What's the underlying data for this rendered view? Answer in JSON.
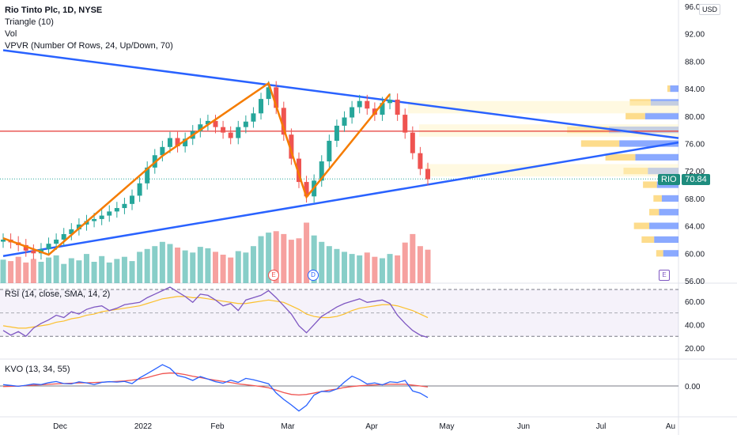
{
  "legend": {
    "title": "Rio Tinto Plc, 1D, NYSE",
    "triangle": "Triangle (10)",
    "vol": "Vol",
    "vpvr": "VPVR (Number Of Rows, 24, Up/Down, 70)"
  },
  "currency": "USD",
  "ticker": {
    "symbol": "RIO",
    "last_price": "70.84"
  },
  "rsi": {
    "label": "RSI (14, close, SMA, 14, 2)"
  },
  "kvo": {
    "label": "KVO (13, 34, 55)"
  },
  "markers": {
    "earnings": "E",
    "dividend": "D",
    "future_earnings": "E"
  },
  "colors": {
    "up": "#26a69a",
    "down": "#ef5350",
    "triangle_lines": "#2962ff",
    "pattern": "#f57c00",
    "horizontal_level": "#e53935",
    "rsi_line": "#7e57c2",
    "rsi_ma": "#fbc02d",
    "kvo_line": "#2962ff",
    "kvo_signal": "#ef5350"
  },
  "chart_data": {
    "type": "candlestick",
    "price_axis": {
      "ylim": [
        56,
        96
      ],
      "ticks": [
        "96.00",
        "92.00",
        "88.00",
        "84.00",
        "80.00",
        "76.00",
        "72.00",
        "68.00",
        "64.00",
        "60.00",
        "56.00"
      ]
    },
    "x_ticks": [
      "Dec",
      "2022",
      "Feb",
      "Mar",
      "Apr",
      "May",
      "Jun",
      "Jul",
      "Au"
    ],
    "horizontal_level": 77.8,
    "last_price": 70.84,
    "close_path": [
      62.0,
      61.6,
      61.2,
      60.4,
      60.0,
      60.6,
      61.4,
      62.0,
      62.8,
      63.5,
      64.2,
      64.7,
      65.0,
      65.5,
      66.1,
      66.6,
      67.2,
      68.4,
      70.2,
      72.5,
      74.3,
      75.5,
      76.8,
      75.6,
      76.7,
      77.8,
      78.8,
      79.3,
      78.4,
      77.6,
      76.8,
      78.4,
      79.2,
      80.4,
      82.5,
      84.2,
      81.2,
      77.3,
      73.8,
      70.4,
      68.3,
      70.6,
      73.4,
      76.4,
      78.6,
      79.8,
      81.3,
      82.2,
      81.1,
      80.2,
      81.9,
      82.4,
      80.2,
      77.6,
      74.6,
      72.3,
      70.8
    ],
    "volume": [
      0.33,
      0.31,
      0.37,
      0.29,
      0.34,
      0.3,
      0.36,
      0.39,
      0.27,
      0.35,
      0.32,
      0.41,
      0.3,
      0.38,
      0.29,
      0.34,
      0.37,
      0.31,
      0.44,
      0.48,
      0.52,
      0.58,
      0.55,
      0.5,
      0.46,
      0.43,
      0.51,
      0.49,
      0.44,
      0.4,
      0.36,
      0.45,
      0.43,
      0.52,
      0.66,
      0.71,
      0.73,
      0.69,
      0.61,
      0.63,
      0.85,
      0.67,
      0.58,
      0.52,
      0.48,
      0.44,
      0.41,
      0.39,
      0.43,
      0.37,
      0.35,
      0.41,
      0.39,
      0.57,
      0.69,
      0.52,
      0.47
    ],
    "vpvr_rows": {
      "price_levels": [
        60,
        62,
        64,
        66,
        68,
        70,
        72,
        74,
        76,
        78,
        80,
        82,
        84
      ],
      "up": [
        0.22,
        0.35,
        0.42,
        0.28,
        0.24,
        0.31,
        0.44,
        0.62,
        0.85,
        1.0,
        0.48,
        0.4,
        0.12
      ],
      "down": [
        0.1,
        0.18,
        0.22,
        0.14,
        0.12,
        0.2,
        0.35,
        0.43,
        0.55,
        0.6,
        0.28,
        0.3,
        0.04
      ]
    },
    "triangle": {
      "upper": [
        [
          0,
          89.6
        ],
        [
          57,
          81.4
        ]
      ],
      "lower": [
        [
          0,
          59.6
        ],
        [
          57,
          70.2
        ]
      ],
      "pattern_points": [
        [
          0,
          62.2
        ],
        [
          6,
          59.8
        ],
        [
          21,
          74.2
        ],
        [
          35,
          84.8
        ],
        [
          40,
          68.2
        ],
        [
          51,
          83.2
        ]
      ]
    },
    "rsi": {
      "ylim": [
        20,
        70
      ],
      "ticks": [
        "60.00",
        "40.00",
        "20.00"
      ],
      "values": [
        35,
        31,
        34,
        30,
        37,
        41,
        44,
        48,
        46,
        51,
        49,
        53,
        55,
        56,
        52,
        54,
        57,
        58,
        59,
        63,
        66,
        69,
        72,
        68,
        64,
        59,
        66,
        65,
        61,
        56,
        58,
        52,
        61,
        63,
        65,
        69,
        63,
        56,
        49,
        39,
        33,
        40,
        47,
        51,
        55,
        58,
        60,
        62,
        59,
        60,
        61,
        58,
        48,
        41,
        35,
        31,
        29
      ],
      "ma": [
        39,
        38,
        37,
        37,
        38,
        39,
        40,
        42,
        43,
        45,
        46,
        48,
        49,
        51,
        52,
        53,
        54,
        55,
        56,
        58,
        60,
        62,
        63,
        64,
        64,
        63,
        63,
        62,
        61,
        60,
        59,
        58,
        58,
        59,
        60,
        61,
        60,
        59,
        56,
        53,
        49,
        47,
        46,
        46,
        47,
        49,
        52,
        54,
        55,
        56,
        57,
        57,
        56,
        54,
        52,
        49,
        46
      ]
    },
    "kvo": {
      "ticks": [
        "0.00"
      ],
      "values": [
        1.0,
        0.4,
        -0.2,
        0.5,
        1.5,
        1.0,
        2.4,
        3.2,
        1.7,
        1.5,
        3.0,
        2.2,
        1.0,
        2.6,
        3.1,
        2.8,
        3.3,
        1.7,
        5.8,
        8.9,
        12.1,
        15.4,
        12.8,
        7.5,
        6.2,
        4.0,
        6.8,
        5.0,
        3.1,
        2.0,
        4.2,
        2.6,
        5.5,
        4.5,
        3.1,
        1.6,
        -5.0,
        -9.7,
        -13.7,
        -18.1,
        -14.0,
        -6.6,
        -3.9,
        -4.2,
        -2.2,
        2.8,
        7.1,
        4.7,
        1.4,
        2.2,
        0.8,
        3.0,
        2.5,
        4.0,
        -3.6,
        -5.2,
        -8.4
      ],
      "signal": [
        -0.4,
        -0.3,
        -0.1,
        0.3,
        0.6,
        0.9,
        1.2,
        1.5,
        1.8,
        2.0,
        2.2,
        2.3,
        2.5,
        2.7,
        3.0,
        3.3,
        3.6,
        4.2,
        5.0,
        6.1,
        7.6,
        8.9,
        9.4,
        9.1,
        8.2,
        7.0,
        6.1,
        5.0,
        4.1,
        3.3,
        2.5,
        1.5,
        0.9,
        0.3,
        -0.4,
        -1.3,
        -3.0,
        -4.8,
        -6.1,
        -6.5,
        -6.1,
        -5.1,
        -4.0,
        -3.0,
        -2.2,
        -1.1,
        -0.4,
        0.1,
        0.5,
        0.8,
        1.0,
        1.2,
        1.3,
        1.2,
        0.6,
        0.0,
        -0.7
      ]
    }
  }
}
